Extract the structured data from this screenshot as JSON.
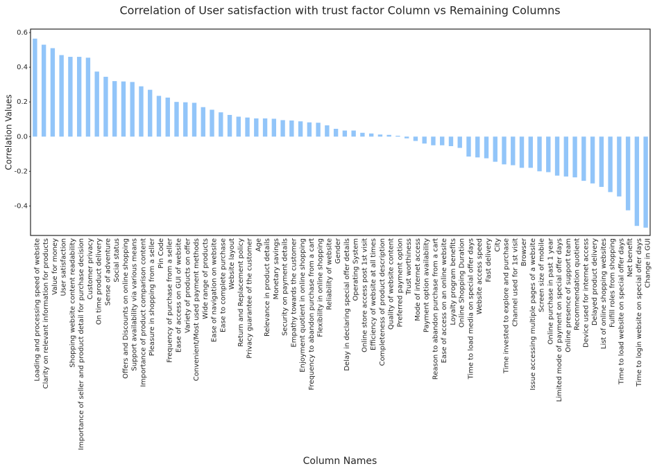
{
  "chart_data": {
    "type": "bar",
    "title": "Correlation of User satisfaction with trust factor Column vs Remaining Columns",
    "xlabel": "Column Names",
    "ylabel": "Correlation Values",
    "color": "#92c5f9",
    "categories": [
      "Loading and processing speed of website",
      "Clarity on relevant information for products",
      "Value for money",
      "User satisfaction",
      "Shopping website content readability",
      "Importance of seller and product detail for purchase decision",
      "Customer privacy",
      "On time product delivery",
      "Sense of adventure",
      "Social status",
      "Offers and Discounts on online shopping",
      "Support availability via various means",
      "Importance of product comparison content",
      "Pleasure in shopping from a seller",
      "Pin Code",
      "Frequency of purchase from a seller",
      "Ease of access on GUI of website",
      "Variety of products on offer",
      "Convenient/Most used payment methods",
      "Wide range of products",
      "Ease of navigation on website",
      "Ease to complete purchase",
      "Website layout",
      "Return and Replacement policy",
      "Privacy guarantee of the customer",
      "Age",
      "Relevance in product details",
      "Monetary savings",
      "Security on payment details",
      "Empathy towards the customer",
      "Enjoyment quotient in online shopping",
      "Frequency to abandon purchase from a cart",
      "Flexibility in online shopping",
      "Reliability of website",
      "Gender",
      "Delay in declaring special offer details",
      "Operating System",
      "Online store access post 1st visit",
      "Efficiency of website at all times",
      "Completeness of product description",
      "Quality of website content",
      "Preferred payment option",
      "Trust worthiness",
      "Mode of internet access",
      "Payment option availability",
      "Reason to abandon purchase from a cart",
      "Ease of access on an online website",
      "Loyalty program benefits",
      "Online Shopping Duration",
      "Time to load media on special offer days",
      "Website access speed",
      "Fast delivery",
      "City",
      "Time invested to explore and purchase",
      "Channel used for 1st visit",
      "Browser",
      "Issue accessing multiple pages of a website",
      "Screen size of mobile",
      "Online purchase in past 1 year",
      "Limited mode of payment on special offer days",
      "Online presence of support team",
      "Recommendation quotient",
      "Device used for internet access",
      "Delayed product delivery",
      "List of online shopping websites",
      "Fulfill roles from shopping",
      "Time to load website on special offer days",
      "Net benefit",
      "Time to login website on special offer days",
      "Change in GUI"
    ],
    "values": [
      0.565,
      0.53,
      0.51,
      0.47,
      0.46,
      0.46,
      0.455,
      0.375,
      0.345,
      0.32,
      0.318,
      0.315,
      0.29,
      0.27,
      0.235,
      0.225,
      0.2,
      0.198,
      0.195,
      0.17,
      0.155,
      0.14,
      0.125,
      0.115,
      0.11,
      0.105,
      0.105,
      0.103,
      0.095,
      0.093,
      0.088,
      0.082,
      0.08,
      0.065,
      0.045,
      0.035,
      0.035,
      0.022,
      0.018,
      0.012,
      0.01,
      0.005,
      -0.01,
      -0.025,
      -0.04,
      -0.05,
      -0.05,
      -0.055,
      -0.065,
      -0.115,
      -0.12,
      -0.125,
      -0.145,
      -0.16,
      -0.165,
      -0.18,
      -0.18,
      -0.2,
      -0.205,
      -0.225,
      -0.23,
      -0.235,
      -0.255,
      -0.27,
      -0.29,
      -0.32,
      -0.345,
      -0.425,
      -0.515,
      -0.525
    ],
    "ylim": [
      -0.57,
      0.62
    ],
    "yticks": [
      {
        "value": -0.4,
        "label": "-0.4"
      },
      {
        "value": -0.2,
        "label": "-0.2"
      },
      {
        "value": 0,
        "label": "0.0"
      },
      {
        "value": 0.2,
        "label": "0.2"
      },
      {
        "value": 0.4,
        "label": "0.4"
      },
      {
        "value": 0.6,
        "label": "0.6"
      }
    ],
    "grid": false
  }
}
